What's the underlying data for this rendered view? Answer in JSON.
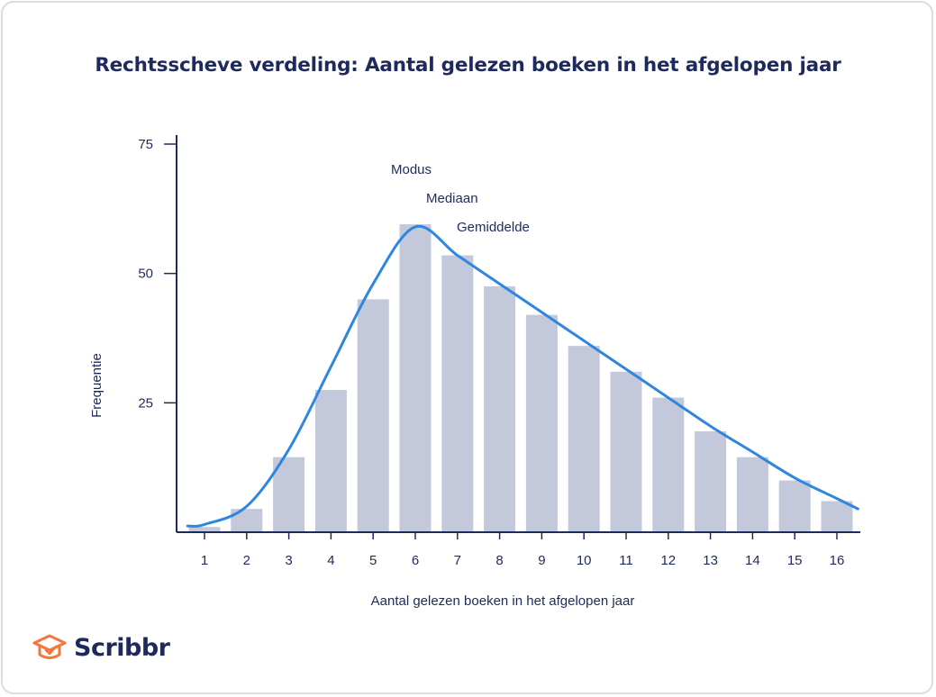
{
  "title": "Rechtsscheve verdeling: Aantal gelezen boeken in het afgelopen jaar",
  "brand": "Scribbr",
  "colors": {
    "bar": "#c3c8db",
    "curve": "#2f86e0",
    "text": "#1f2a5c",
    "axis": "#1f2a5c",
    "logo_icon": "#f5763b"
  },
  "chart_data": {
    "type": "bar",
    "title": "Rechtsscheve verdeling: Aantal gelezen boeken in het afgelopen jaar",
    "xlabel": "Aantal gelezen boeken in het afgelopen jaar",
    "ylabel": "Frequentie",
    "categories": [
      "1",
      "2",
      "3",
      "4",
      "5",
      "6",
      "7",
      "8",
      "9",
      "10",
      "11",
      "12",
      "13",
      "14",
      "15",
      "16"
    ],
    "values": [
      1,
      4.5,
      14.5,
      27.5,
      45,
      59.5,
      53.5,
      47.5,
      42,
      36,
      31,
      26,
      19.5,
      14.5,
      10,
      6
    ],
    "ylim": [
      0,
      75
    ],
    "yticks": [
      25,
      50,
      75
    ],
    "grid": false,
    "curve": {
      "x": [
        0.6,
        1,
        2,
        3,
        4,
        5,
        6,
        7,
        8,
        9,
        10,
        11,
        12,
        13,
        14,
        15,
        16,
        16.5
      ],
      "y": [
        1.2,
        1.5,
        5,
        16,
        32,
        48,
        59,
        53.5,
        48,
        42.5,
        37,
        31.5,
        26,
        20.5,
        15.5,
        10.5,
        6.5,
        4.5
      ]
    },
    "annotations": [
      "Modus",
      "Mediaan",
      "Gemiddelde"
    ]
  }
}
